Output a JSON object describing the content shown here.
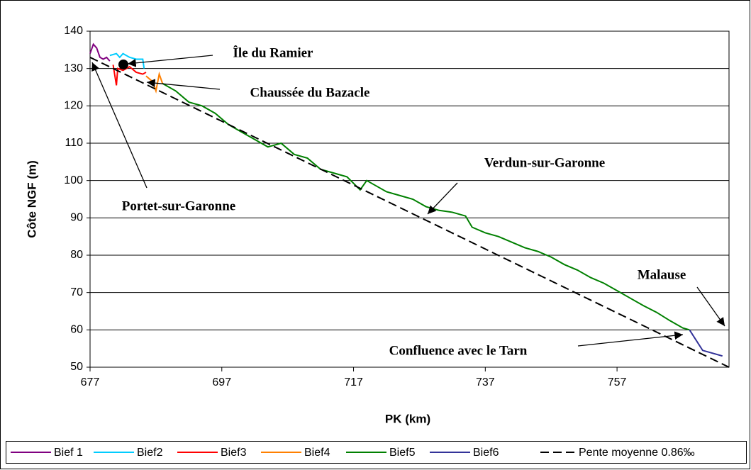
{
  "chart_data": {
    "type": "line",
    "xlabel": "PK (km)",
    "ylabel": "Côte NGF (m)",
    "xlim": [
      677,
      774
    ],
    "xticks": [
      677,
      697,
      717,
      737,
      757
    ],
    "ylim": [
      50,
      140
    ],
    "yticks": [
      50,
      60,
      70,
      80,
      90,
      100,
      110,
      120,
      130,
      140
    ],
    "grid": true,
    "legend": "bottom",
    "series": [
      {
        "name": "Bief 1",
        "color": "#800080",
        "linestyle": "solid",
        "x": [
          677,
          677.5,
          678,
          678.5,
          679,
          679.5,
          680
        ],
        "values": [
          134,
          136.5,
          135.5,
          133,
          132.5,
          133,
          132
        ]
      },
      {
        "name": "Bief2",
        "color": "#00ccff",
        "linestyle": "solid",
        "x": [
          680,
          681,
          681.5,
          682,
          683,
          684,
          685,
          685.2
        ],
        "values": [
          133.5,
          134,
          133,
          134,
          133,
          132.5,
          132.5,
          130
        ]
      },
      {
        "name": "Bief3",
        "color": "#ff0000",
        "linestyle": "solid",
        "x": [
          680.5,
          681,
          681.2,
          682,
          683,
          684,
          685,
          685.5
        ],
        "values": [
          131,
          125.5,
          130,
          129.5,
          130.5,
          129,
          128.5,
          129
        ]
      },
      {
        "name": "Bief4",
        "color": "#ff8000",
        "linestyle": "solid",
        "x": [
          685.5,
          686.5,
          687,
          687.5,
          688
        ],
        "values": [
          128,
          126.5,
          124,
          128.5,
          126
        ]
      },
      {
        "name": "Bief5",
        "color": "#008000",
        "linestyle": "solid",
        "x": [
          688,
          690,
          692,
          694,
          696,
          698,
          700,
          702,
          704,
          706,
          708,
          710,
          712,
          714,
          716,
          718,
          719,
          720,
          722,
          724,
          726,
          728,
          730,
          732,
          734,
          735,
          737,
          739,
          741,
          743,
          745,
          747,
          749,
          751,
          753,
          755,
          757,
          759,
          761,
          763,
          765,
          767,
          768
        ],
        "values": [
          126,
          124,
          121,
          120,
          118,
          115,
          113,
          111,
          109,
          110,
          107,
          106,
          103,
          102,
          101,
          97.5,
          100,
          99,
          97,
          96,
          95,
          93,
          92,
          91.5,
          90.5,
          87.5,
          86,
          85,
          83.5,
          82,
          81,
          79.5,
          77.5,
          76,
          74,
          72.5,
          70.5,
          68.5,
          66.5,
          64.7,
          62.5,
          60.5,
          60
        ]
      },
      {
        "name": "Bief6",
        "color": "#333399",
        "linestyle": "solid",
        "x": [
          768,
          770,
          773
        ],
        "values": [
          60,
          54.5,
          53
        ]
      },
      {
        "name": "Pente moyenne 0.86‰",
        "color": "#000000",
        "linestyle": "dashed",
        "x": [
          677,
          774
        ],
        "values": [
          133,
          50
        ]
      }
    ],
    "annotations": [
      "Île du Ramier",
      "Chaussée du Bazacle",
      "Portet-sur-Garonne",
      "Verdun-sur-Garonne",
      "Malause",
      "Confluence avec le Tarn"
    ]
  }
}
